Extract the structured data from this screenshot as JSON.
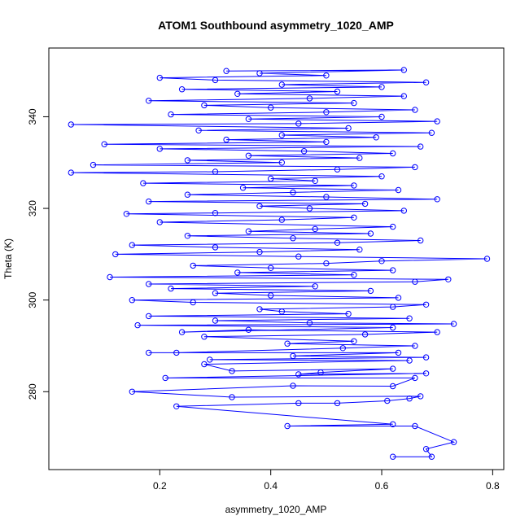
{
  "chart_data": {
    "type": "line",
    "title": "ATOM1 Southbound asymmetry_1020_AMP",
    "xlabel": "asymmetry_1020_AMP",
    "ylabel": "Theta (K)",
    "xlim": [
      0.0,
      0.82
    ],
    "ylim": [
      263,
      355
    ],
    "xticks": [
      0.2,
      0.4,
      0.6,
      0.8
    ],
    "yticks": [
      280,
      300,
      320,
      340
    ],
    "x_tick_labels": [
      "0.2",
      "0.4",
      "0.6",
      "0.8"
    ],
    "y_tick_labels": [
      "280",
      "300",
      "320",
      "340"
    ],
    "grid": false,
    "legend": "none",
    "marker": "open-circle",
    "color": "#0000ff",
    "points": [
      [
        0.62,
        265.8
      ],
      [
        0.69,
        265.8
      ],
      [
        0.68,
        267.5
      ],
      [
        0.73,
        269.0
      ],
      [
        0.66,
        272.5
      ],
      [
        0.43,
        272.5
      ],
      [
        0.62,
        272.9
      ],
      [
        0.23,
        276.8
      ],
      [
        0.45,
        277.5
      ],
      [
        0.52,
        277.5
      ],
      [
        0.61,
        278.0
      ],
      [
        0.65,
        278.5
      ],
      [
        0.67,
        279.0
      ],
      [
        0.33,
        278.8
      ],
      [
        0.15,
        280.0
      ],
      [
        0.44,
        281.3
      ],
      [
        0.62,
        281.2
      ],
      [
        0.66,
        283.0
      ],
      [
        0.21,
        283.0
      ],
      [
        0.68,
        284.0
      ],
      [
        0.45,
        283.8
      ],
      [
        0.49,
        284.2
      ],
      [
        0.62,
        285.0
      ],
      [
        0.33,
        284.5
      ],
      [
        0.28,
        286.0
      ],
      [
        0.65,
        286.8
      ],
      [
        0.29,
        287.0
      ],
      [
        0.68,
        287.5
      ],
      [
        0.44,
        287.8
      ],
      [
        0.63,
        288.5
      ],
      [
        0.18,
        288.5
      ],
      [
        0.23,
        288.5
      ],
      [
        0.53,
        289.5
      ],
      [
        0.66,
        290.0
      ],
      [
        0.43,
        290.5
      ],
      [
        0.55,
        291.0
      ],
      [
        0.28,
        292.0
      ],
      [
        0.57,
        292.5
      ],
      [
        0.7,
        293.0
      ],
      [
        0.36,
        293.5
      ],
      [
        0.24,
        293.0
      ],
      [
        0.62,
        294.0
      ],
      [
        0.16,
        294.5
      ],
      [
        0.73,
        294.8
      ],
      [
        0.47,
        295.0
      ],
      [
        0.3,
        295.5
      ],
      [
        0.65,
        296.0
      ],
      [
        0.18,
        296.5
      ],
      [
        0.54,
        297.0
      ],
      [
        0.42,
        297.5
      ],
      [
        0.38,
        298.0
      ],
      [
        0.62,
        298.5
      ],
      [
        0.68,
        299.0
      ],
      [
        0.26,
        299.5
      ],
      [
        0.15,
        300.0
      ],
      [
        0.63,
        300.5
      ],
      [
        0.4,
        301.0
      ],
      [
        0.3,
        301.5
      ],
      [
        0.58,
        302.0
      ],
      [
        0.22,
        302.5
      ],
      [
        0.48,
        303.0
      ],
      [
        0.18,
        303.5
      ],
      [
        0.66,
        304.0
      ],
      [
        0.72,
        304.5
      ],
      [
        0.11,
        305.0
      ],
      [
        0.55,
        305.5
      ],
      [
        0.34,
        306.0
      ],
      [
        0.62,
        306.5
      ],
      [
        0.4,
        307.0
      ],
      [
        0.26,
        307.5
      ],
      [
        0.5,
        308.0
      ],
      [
        0.6,
        308.5
      ],
      [
        0.79,
        309.0
      ],
      [
        0.45,
        309.5
      ],
      [
        0.12,
        310.0
      ],
      [
        0.38,
        310.5
      ],
      [
        0.56,
        311.0
      ],
      [
        0.3,
        311.5
      ],
      [
        0.15,
        312.0
      ],
      [
        0.52,
        312.5
      ],
      [
        0.67,
        313.0
      ],
      [
        0.44,
        313.5
      ],
      [
        0.25,
        314.0
      ],
      [
        0.58,
        314.5
      ],
      [
        0.36,
        315.0
      ],
      [
        0.48,
        315.5
      ],
      [
        0.62,
        316.0
      ],
      [
        0.2,
        317.0
      ],
      [
        0.42,
        317.5
      ],
      [
        0.55,
        318.0
      ],
      [
        0.14,
        318.8
      ],
      [
        0.3,
        319.0
      ],
      [
        0.64,
        319.5
      ],
      [
        0.47,
        320.0
      ],
      [
        0.38,
        320.5
      ],
      [
        0.57,
        321.0
      ],
      [
        0.18,
        321.5
      ],
      [
        0.7,
        322.0
      ],
      [
        0.5,
        322.5
      ],
      [
        0.25,
        323.0
      ],
      [
        0.44,
        323.5
      ],
      [
        0.63,
        324.0
      ],
      [
        0.35,
        324.5
      ],
      [
        0.55,
        325.0
      ],
      [
        0.17,
        325.5
      ],
      [
        0.48,
        326.0
      ],
      [
        0.4,
        326.5
      ],
      [
        0.6,
        327.0
      ],
      [
        0.04,
        327.8
      ],
      [
        0.3,
        328.0
      ],
      [
        0.52,
        328.5
      ],
      [
        0.66,
        329.0
      ],
      [
        0.08,
        329.5
      ],
      [
        0.42,
        330.0
      ],
      [
        0.25,
        330.5
      ],
      [
        0.56,
        331.0
      ],
      [
        0.36,
        331.5
      ],
      [
        0.62,
        332.0
      ],
      [
        0.46,
        332.5
      ],
      [
        0.2,
        333.0
      ],
      [
        0.67,
        333.5
      ],
      [
        0.1,
        334.0
      ],
      [
        0.5,
        334.5
      ],
      [
        0.32,
        335.0
      ],
      [
        0.59,
        335.5
      ],
      [
        0.42,
        336.0
      ],
      [
        0.69,
        336.5
      ],
      [
        0.27,
        337.0
      ],
      [
        0.54,
        337.5
      ],
      [
        0.04,
        338.3
      ],
      [
        0.45,
        338.5
      ],
      [
        0.7,
        339.0
      ],
      [
        0.36,
        339.5
      ],
      [
        0.6,
        340.0
      ],
      [
        0.22,
        340.5
      ],
      [
        0.5,
        341.0
      ],
      [
        0.66,
        341.5
      ],
      [
        0.4,
        342.0
      ],
      [
        0.28,
        342.5
      ],
      [
        0.55,
        343.0
      ],
      [
        0.18,
        343.5
      ],
      [
        0.47,
        344.0
      ],
      [
        0.64,
        344.5
      ],
      [
        0.34,
        345.0
      ],
      [
        0.52,
        345.5
      ],
      [
        0.24,
        346.0
      ],
      [
        0.6,
        346.5
      ],
      [
        0.42,
        347.0
      ],
      [
        0.68,
        347.5
      ],
      [
        0.3,
        348.0
      ],
      [
        0.2,
        348.5
      ],
      [
        0.5,
        349.0
      ],
      [
        0.38,
        349.5
      ],
      [
        0.64,
        350.2
      ],
      [
        0.32,
        350.0
      ]
    ]
  }
}
